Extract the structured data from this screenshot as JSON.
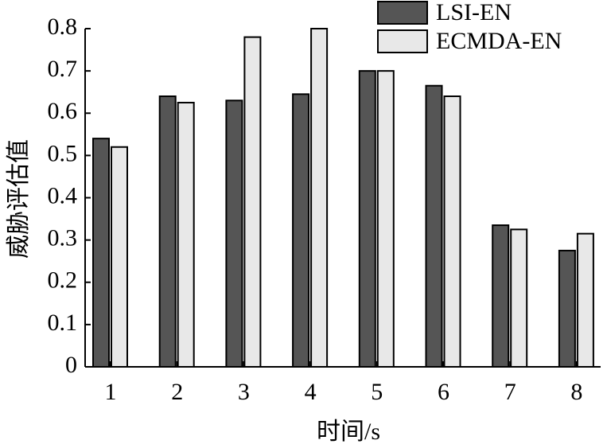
{
  "chart_data": {
    "type": "bar",
    "x_label": "时间/s",
    "y_label": "威胁评估值",
    "categories": [
      "1",
      "2",
      "3",
      "4",
      "5",
      "6",
      "7",
      "8"
    ],
    "series": [
      {
        "name": "LSI-EN",
        "color": "#555555",
        "values": [
          0.54,
          0.64,
          0.63,
          0.645,
          0.7,
          0.665,
          0.335,
          0.275
        ]
      },
      {
        "name": "ECMDA-EN",
        "color": "#e8e8e8",
        "values": [
          0.52,
          0.625,
          0.78,
          0.8,
          0.7,
          0.64,
          0.325,
          0.315
        ]
      }
    ],
    "ylim": [
      0,
      0.8
    ],
    "yticks": [
      0,
      0.1,
      0.2,
      0.3,
      0.4,
      0.5,
      0.6,
      0.7,
      0.8
    ],
    "legend": "top-right"
  }
}
